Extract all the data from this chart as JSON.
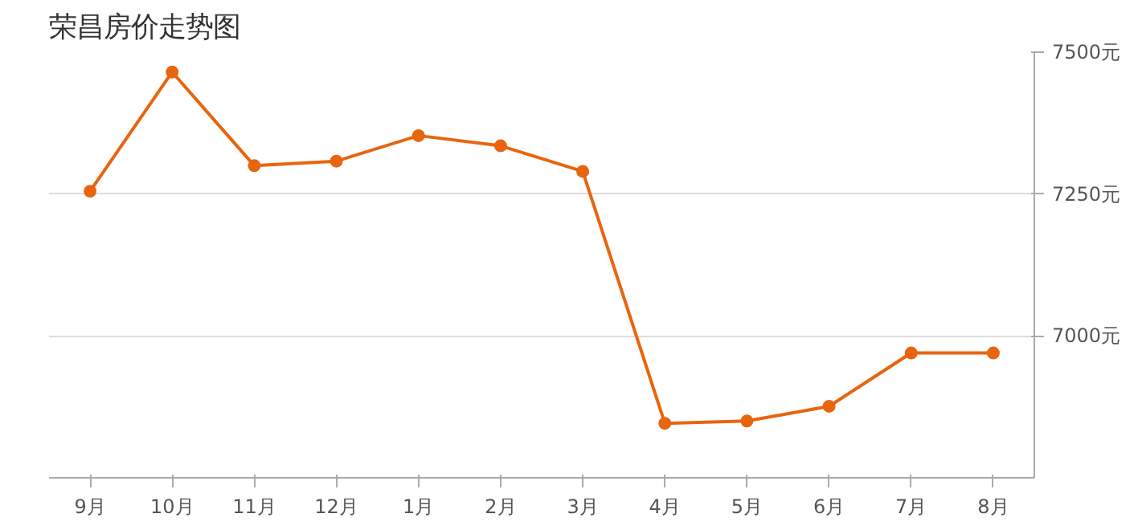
{
  "chart_data": {
    "type": "line",
    "title": "荣昌房价走势图",
    "categories": [
      "9月",
      "10月",
      "11月",
      "12月",
      "1月",
      "2月",
      "3月",
      "4月",
      "5月",
      "6月",
      "7月",
      "8月"
    ],
    "series": [
      {
        "color": "#e8650f",
        "values": [
          7255,
          7465,
          7300,
          7308,
          7353,
          7335,
          7290,
          6846,
          6850,
          6876,
          6970,
          6970
        ]
      }
    ],
    "ylim": [
      6750,
      7500
    ],
    "yticks": [
      {
        "value": 7000,
        "label": "7000元"
      },
      {
        "value": 7250,
        "label": "7250元"
      },
      {
        "value": 7500,
        "label": "7500元"
      }
    ],
    "grid": "y",
    "marker": "circle",
    "line_style": "solid"
  }
}
